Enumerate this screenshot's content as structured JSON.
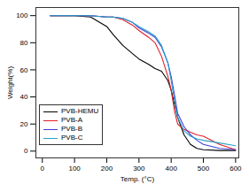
{
  "chart_data": {
    "type": "line",
    "x_label": "Temp. (°C)",
    "y_label": "Weight(%)",
    "x": [
      25,
      100,
      150,
      200,
      220,
      250,
      280,
      300,
      330,
      350,
      370,
      390,
      400,
      410,
      420,
      440,
      460,
      480,
      500,
      550,
      600
    ],
    "series": [
      {
        "name": "PVB-HEMU",
        "color": "#000000",
        "values": [
          100,
          100,
          99,
          92,
          86,
          78,
          72,
          68,
          64,
          61,
          59,
          52,
          45,
          35,
          25,
          12,
          5,
          2,
          1,
          0.5,
          0.5
        ]
      },
      {
        "name": "PVB-A",
        "color": "#e0202a",
        "values": [
          100,
          100,
          100,
          99,
          99,
          97,
          93,
          89,
          84,
          80,
          70,
          55,
          45,
          30,
          20,
          16,
          14,
          12,
          11,
          5,
          1
        ]
      },
      {
        "name": "PVB-B",
        "color": "#3d3dd6",
        "values": [
          100,
          100,
          100,
          99,
          99,
          98,
          95,
          91,
          87,
          84,
          77,
          65,
          55,
          42,
          28,
          18,
          12,
          8,
          5,
          2,
          1
        ]
      },
      {
        "name": "PVB-C",
        "color": "#29a3c9",
        "values": [
          100,
          100,
          100,
          99,
          99,
          98,
          95,
          92,
          88,
          85,
          78,
          65,
          52,
          38,
          25,
          15,
          11,
          9,
          8,
          6,
          4
        ]
      }
    ],
    "xlim": [
      -20,
      610
    ],
    "xticks": [
      0,
      100,
      200,
      300,
      400,
      500,
      600
    ],
    "ylim": [
      -5,
      106
    ],
    "yticks": [
      0,
      20,
      40,
      60,
      80,
      100
    ],
    "legend": "lower left",
    "grid": false
  }
}
